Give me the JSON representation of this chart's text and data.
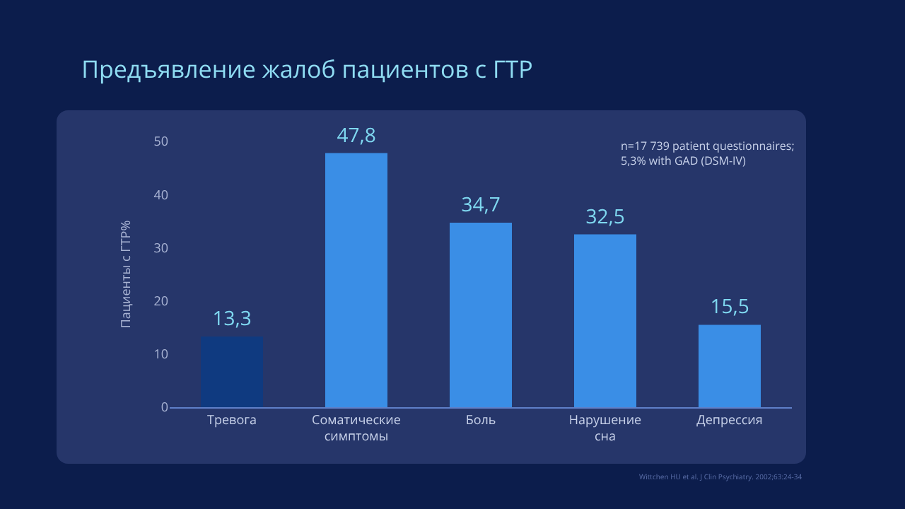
{
  "chart_data": {
    "type": "bar",
    "title": "Предъявление жалоб пациентов с ГТР",
    "ylabel": "Пациенты с ГТР%",
    "categories": [
      "Тревога",
      "Соматические\nсимптомы",
      "Боль",
      "Нарушение\nсна",
      "Депрессия"
    ],
    "values": [
      13.3,
      47.8,
      34.7,
      32.5,
      15.5
    ],
    "value_labels": [
      "13,3",
      "47,8",
      "34,7",
      "32,5",
      "15,5"
    ],
    "colors": [
      "#0f3a80",
      "#3a8ee6",
      "#3a8ee6",
      "#3a8ee6",
      "#3a8ee6"
    ],
    "ylim": [
      0,
      50
    ],
    "yticks": [
      0,
      10,
      20,
      30,
      40,
      50
    ],
    "grid": false,
    "legend": false,
    "annotations": [
      "n=17 739 patient questionnaires;\n5,3% with GAD (DSM-IV)",
      "Wittchen HU et al. J Clin Psychiatry. 2002;63:24-34"
    ]
  }
}
